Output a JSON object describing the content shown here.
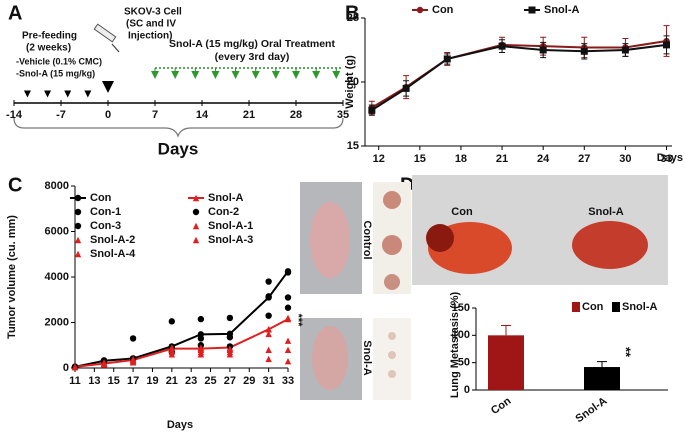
{
  "panel_labels": [
    "A",
    "B",
    "C",
    "D"
  ],
  "timeline": {
    "prefeed_lines": [
      "Pre-feeding",
      "(2 weeks)"
    ],
    "groups": [
      "-Vehicle (0.1% CMC)",
      "-Snol-A (15 mg/kg)"
    ],
    "injection_lines": [
      "SKOV-3 Cell",
      "(SC and IV",
      "Injection)"
    ],
    "treatment_lines": [
      "Snol-A (15 mg/kg) Oral Treatment",
      "(every 3rd day)"
    ],
    "ticks": [
      -14,
      -7,
      0,
      7,
      14,
      21,
      28,
      35
    ],
    "xlim": [
      -14,
      35
    ],
    "prefeed_days": [
      -12,
      -9,
      -6,
      -3
    ],
    "injection_day": 0,
    "treatment_days": [
      7,
      10,
      13,
      16,
      19,
      22,
      25,
      28,
      31,
      34
    ],
    "xlabel": "Days"
  },
  "images": {
    "mouse_labels": [
      "Control",
      "Snol-A"
    ],
    "lung_labels": [
      "Con",
      "Snol-A"
    ]
  },
  "chart_data": [
    {
      "type": "line",
      "ylabel": "Weight (g)",
      "xlabel": "Days",
      "x": [
        11.5,
        14,
        17,
        21,
        24,
        27,
        30,
        33
      ],
      "xlim": [
        11,
        33.4
      ],
      "xticks": [
        12,
        15,
        18,
        21,
        24,
        27,
        30,
        33
      ],
      "ylim": [
        15,
        25
      ],
      "yticks": [
        15,
        20,
        25
      ],
      "series": [
        {
          "name": "Con",
          "color": "#8b1a1a",
          "marker": "circle",
          "connected": true,
          "values": [
            18,
            19.6,
            21.8,
            22.9,
            22.8,
            22.7,
            22.7,
            23.2
          ],
          "errors": [
            0.5,
            0.9,
            0.5,
            0.6,
            0.7,
            0.8,
            0.7,
            1.2
          ]
        },
        {
          "name": "Snol-A",
          "color": "#111111",
          "marker": "square",
          "connected": true,
          "values": [
            17.8,
            19.5,
            21.8,
            22.8,
            22.5,
            22.4,
            22.5,
            22.9
          ],
          "errors": [
            0.4,
            0.6,
            0.4,
            0.5,
            0.6,
            0.6,
            0.5,
            0.7
          ]
        }
      ]
    },
    {
      "type": "line",
      "ylabel": "Tumor volume (cu. mm)",
      "xlabel": "Days",
      "annotation": "***",
      "x": [
        11,
        14,
        17,
        21,
        24,
        27,
        31,
        33
      ],
      "xlim": [
        11,
        33
      ],
      "xticks": [
        11,
        13,
        15,
        17,
        19,
        21,
        23,
        25,
        27,
        29,
        31,
        33
      ],
      "ylim": [
        0,
        8000
      ],
      "yticks": [
        0,
        2000,
        4000,
        6000,
        8000
      ],
      "series": [
        {
          "name": "Con",
          "color": "#000000",
          "marker": "circle",
          "connected": true,
          "values": [
            50,
            320,
            420,
            950,
            1480,
            1500,
            3100,
            4250
          ]
        },
        {
          "name": "Snol-A",
          "color": "#e02020",
          "marker": "triangle",
          "connected": true,
          "values": [
            50,
            200,
            350,
            850,
            850,
            900,
            1700,
            2150
          ]
        },
        {
          "name": "Con-1",
          "color": "#000000",
          "marker": "circle",
          "connected": false,
          "values": [
            50,
            330,
            1300,
            2050,
            2150,
            2200,
            3800,
            4200
          ]
        },
        {
          "name": "Con-2",
          "color": "#000000",
          "marker": "circle",
          "connected": false,
          "values": [
            40,
            300,
            400,
            900,
            1300,
            1350,
            3150,
            3100
          ]
        },
        {
          "name": "Con-3",
          "color": "#000000",
          "marker": "circle",
          "connected": false,
          "values": [
            60,
            330,
            420,
            700,
            1000,
            950,
            2300,
            2650
          ]
        },
        {
          "name": "Snol-A-1",
          "color": "#e02020",
          "marker": "triangle",
          "connected": false,
          "values": [
            40,
            180,
            300,
            900,
            800,
            850,
            1700,
            2200
          ]
        },
        {
          "name": "Snol-A-2",
          "color": "#e02020",
          "marker": "triangle",
          "connected": false,
          "values": [
            50,
            200,
            350,
            800,
            900,
            800,
            1500,
            1200
          ]
        },
        {
          "name": "Snol-A-3",
          "color": "#e02020",
          "marker": "triangle",
          "connected": false,
          "values": [
            50,
            150,
            250,
            700,
            600,
            700,
            800,
            800
          ]
        },
        {
          "name": "Snol-A-4",
          "color": "#e02020",
          "marker": "triangle",
          "connected": false,
          "values": [
            60,
            250,
            400,
            600,
            700,
            600,
            400,
            300
          ]
        }
      ]
    },
    {
      "type": "bar",
      "ylabel": "Lung Metastasis (%)",
      "annotation": "**",
      "categories": [
        "Con",
        "Snol-A"
      ],
      "values": [
        100,
        42
      ],
      "errors": [
        18,
        10
      ],
      "colors": [
        "#a01515",
        "#000000"
      ],
      "ylim": [
        0,
        150
      ],
      "yticks": [
        0,
        50,
        100,
        150
      ]
    }
  ]
}
